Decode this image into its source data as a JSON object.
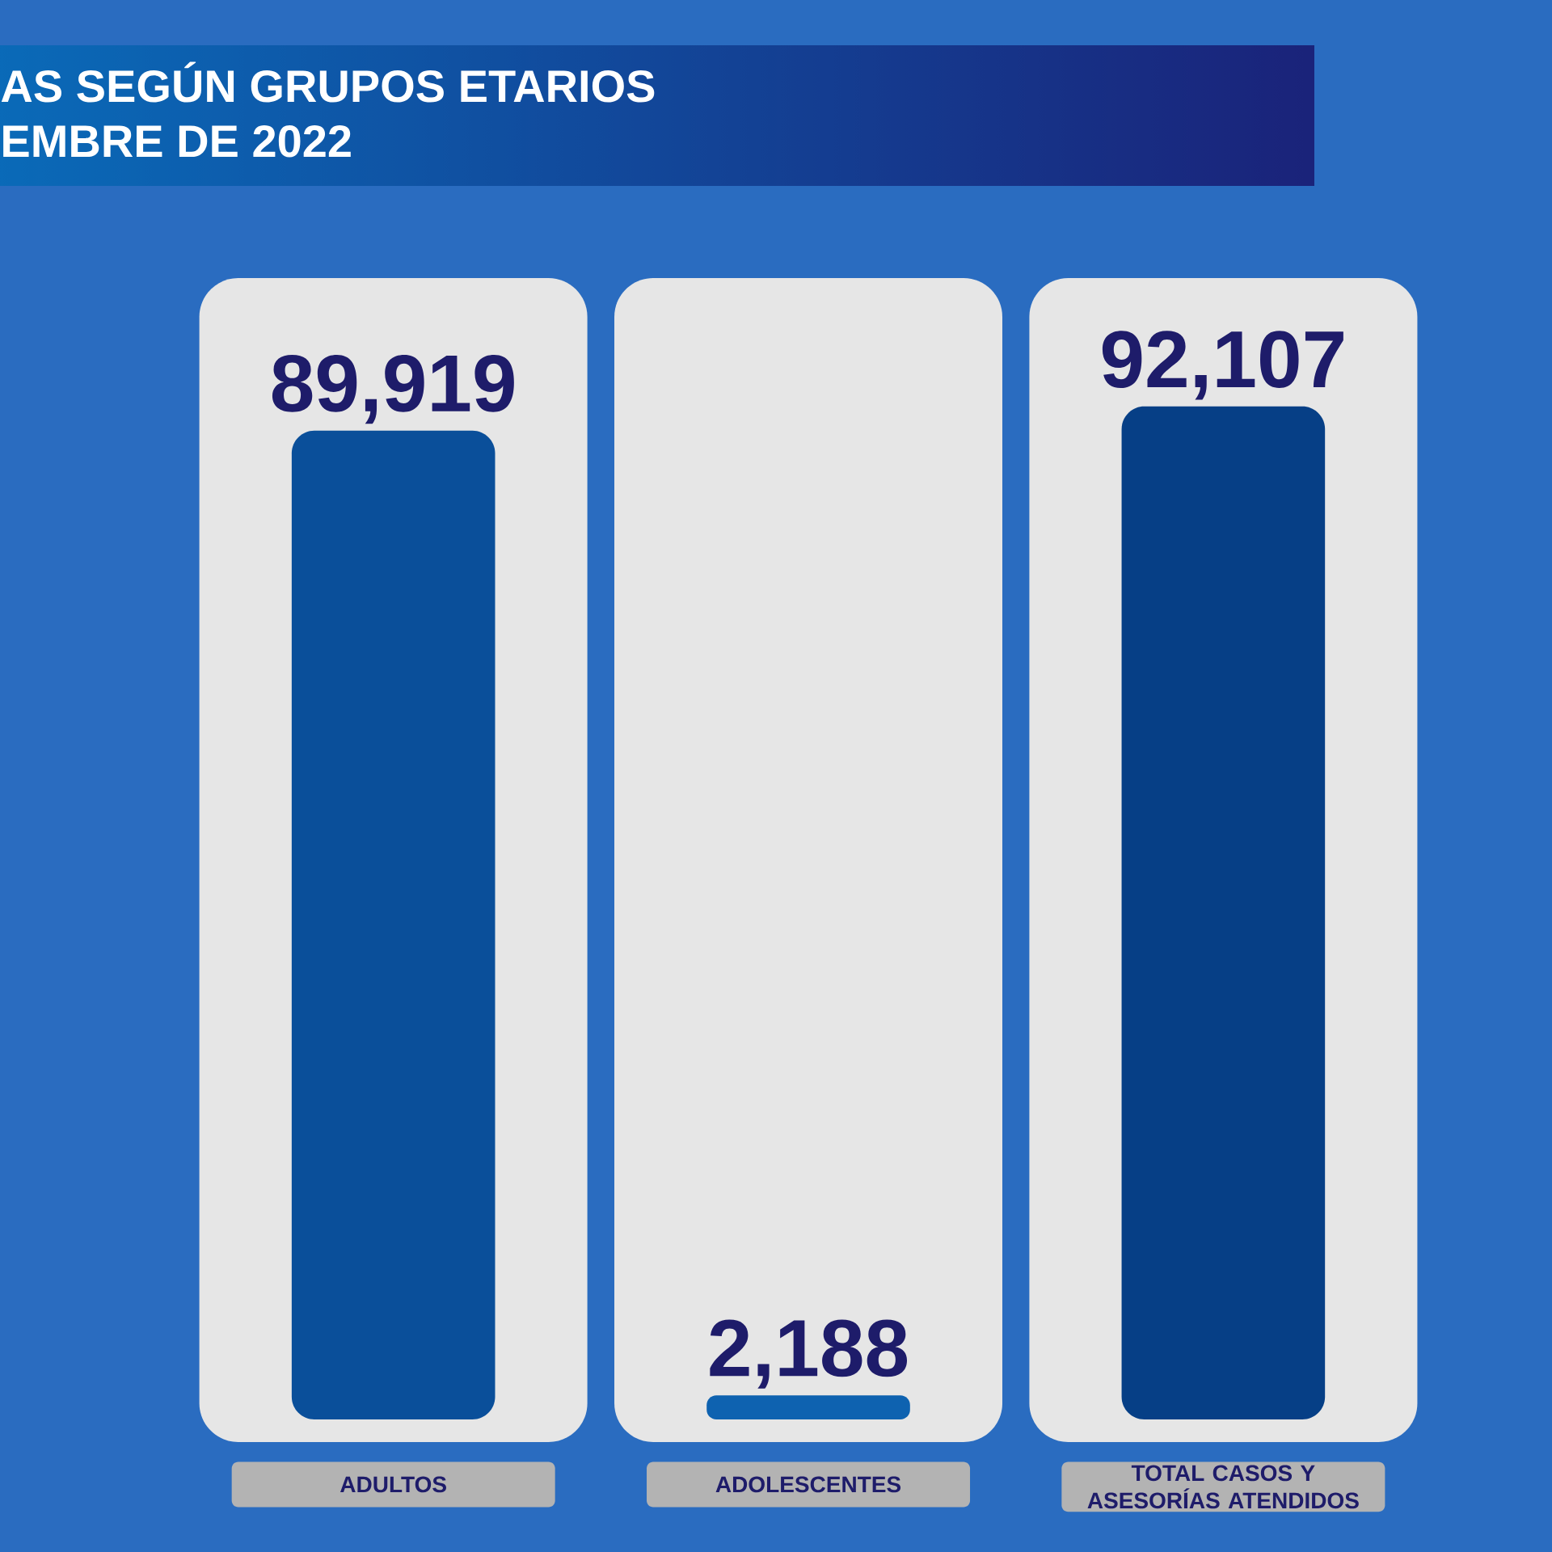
{
  "chart_data": {
    "type": "bar",
    "title": "AS SEGÚN GRUPOS ETARIOS",
    "subtitle": "EMBRE DE 2022",
    "categories": [
      "ADULTOS",
      "ADOLESCENTES",
      "TOTAL CASOS Y ASESORÍAS ATENDIDOS"
    ],
    "values": [
      89919,
      2188,
      92107
    ],
    "colors": [
      "#0a4f9a",
      "#0e62b0",
      "#063f86"
    ],
    "value_labels": [
      "89,919",
      "2,188",
      "92,107"
    ]
  }
}
